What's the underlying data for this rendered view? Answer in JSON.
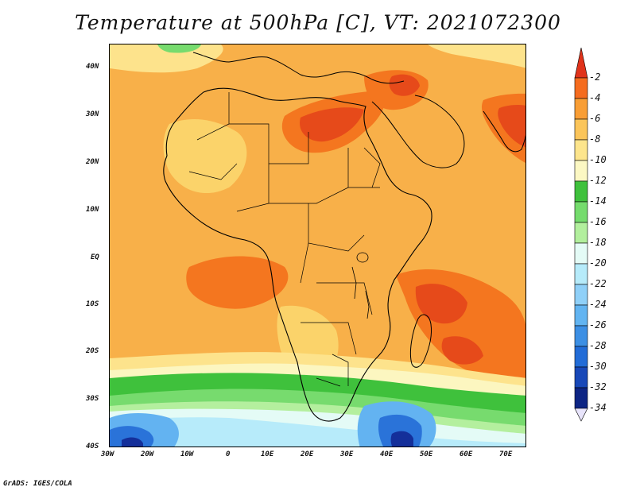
{
  "title": "Temperature at 500hPa [C], VT: 2021072300",
  "footer": "GrADS: IGES/COLA",
  "x_ticks": [
    "30W",
    "20W",
    "10W",
    "0",
    "10E",
    "20E",
    "30E",
    "40E",
    "50E",
    "60E",
    "70E"
  ],
  "y_ticks": [
    "40N",
    "30N",
    "20N",
    "10N",
    "EQ",
    "10S",
    "20S",
    "30S",
    "40S"
  ],
  "colorbar": {
    "labels": [
      "-2",
      "-4",
      "-6",
      "-8",
      "-10",
      "-12",
      "-14",
      "-16",
      "-18",
      "-20",
      "-22",
      "-24",
      "-26",
      "-28",
      "-30",
      "-32",
      "-34"
    ],
    "colors": [
      "#e0331b",
      "#f56c1f",
      "#f99e35",
      "#fbc55a",
      "#fde58c",
      "#fcf8c3",
      "#3fc13c",
      "#75dc6d",
      "#b2ef9d",
      "#e4fbf6",
      "#b6ebfa",
      "#8fd0f8",
      "#62b4f1",
      "#3c8fe4",
      "#226cd7",
      "#1848b8",
      "#0d2584"
    ]
  },
  "map_colors": {
    "land_base": "#f8b049",
    "ocean_base": "#fbc35c",
    "hot": "#f4761f",
    "hottest": "#e64a1a",
    "warm": "#fbd36a",
    "cool": "#fde38c",
    "pale": "#fcf6c0",
    "green": "#3fc13c",
    "light_green": "#77db6e",
    "mint": "#b4ef9e",
    "ice": "#e4fbf6",
    "sky": "#b7ebfa",
    "blue": "#63b3f1",
    "deep_blue": "#2a73d9",
    "navy": "#142f9a"
  }
}
